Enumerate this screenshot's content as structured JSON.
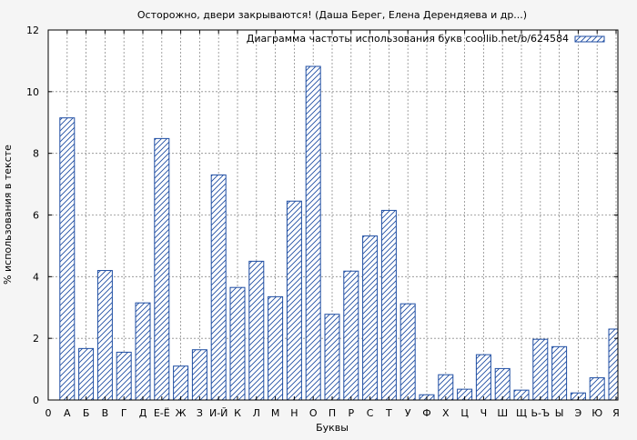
{
  "chart_data": {
    "type": "bar",
    "title": "Осторожно, двери закрываются! (Даша Берег, Елена Дерендяева и др...)",
    "xlabel": "Буквы",
    "ylabel": "% использования в тексте",
    "categories": [
      "А",
      "Б",
      "В",
      "Г",
      "Д",
      "Е-Ё",
      "Ж",
      "З",
      "И-Й",
      "К",
      "Л",
      "М",
      "Н",
      "О",
      "П",
      "Р",
      "С",
      "Т",
      "У",
      "Ф",
      "Х",
      "Ц",
      "Ч",
      "Ш",
      "Щ",
      "Ь-Ъ",
      "Ы",
      "Э",
      "Ю",
      "Я"
    ],
    "x_tick_labels": [
      "0",
      "А",
      "Б",
      "В",
      "Г",
      "Д",
      "Е-Ё",
      "Ж",
      "З",
      "И-Й",
      "К",
      "Л",
      "М",
      "Н",
      "О",
      "П",
      "Р",
      "С",
      "Т",
      "У",
      "Ф",
      "Х",
      "Ц",
      "Ч",
      "Ш",
      "Щ",
      "Ь-Ъ",
      "Ы",
      "Э",
      "Ю",
      "Я"
    ],
    "series": [
      {
        "name": "Диаграмма частоты использования букв coollib.net/b/624584",
        "values": [
          9.15,
          1.67,
          4.2,
          1.55,
          3.15,
          8.48,
          1.1,
          1.63,
          7.3,
          3.65,
          4.5,
          3.35,
          6.45,
          10.82,
          2.78,
          4.18,
          5.32,
          6.15,
          3.12,
          0.17,
          0.82,
          0.35,
          1.47,
          1.02,
          0.32,
          1.97,
          1.73,
          0.23,
          0.72,
          2.3
        ]
      }
    ],
    "ylim": [
      0,
      12
    ],
    "y_ticks": [
      "0",
      "2",
      "4",
      "6",
      "8",
      "10",
      "12"
    ],
    "grid": true,
    "legend_position": "top-right",
    "colors": {
      "bar_edge": "#1f4ea3",
      "hatch": "#1f4ea3",
      "bar_fill": "#ffffff",
      "plot_background": "#ffffff",
      "figure_background": "#f5f5f5",
      "grid": "#8c8c8c"
    }
  }
}
